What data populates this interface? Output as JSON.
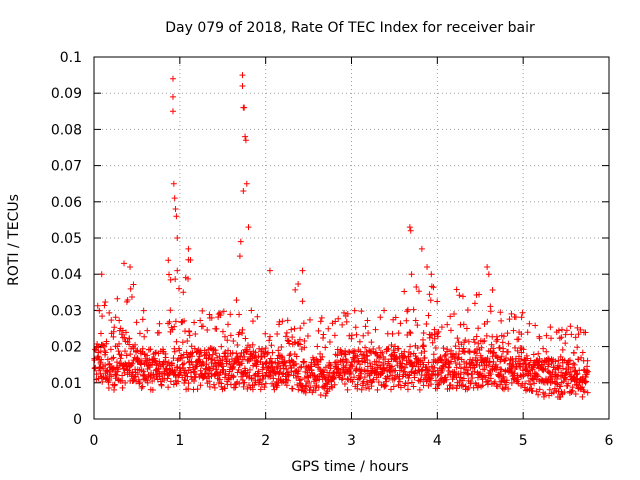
{
  "chart_data": {
    "type": "scatter",
    "title": "Day 079 of 2018, Rate Of TEC Index for receiver bair",
    "xlabel": "GPS time / hours",
    "ylabel": "ROTI / TECUs",
    "xlim": [
      0,
      6
    ],
    "ylim": [
      0,
      0.1
    ],
    "xticks": [
      0,
      1,
      2,
      3,
      4,
      5,
      6
    ],
    "xtick_labels": [
      "0",
      "1",
      "2",
      "3",
      "4",
      "5",
      "6"
    ],
    "yticks": [
      0,
      0.01,
      0.02,
      0.03,
      0.04,
      0.05,
      0.06,
      0.07,
      0.08,
      0.09,
      0.1
    ],
    "ytick_labels": [
      "0",
      "0.01",
      "0.02",
      "0.03",
      "0.04",
      "0.05",
      "0.06",
      "0.07",
      "0.08",
      "0.09",
      "0.1"
    ],
    "grid": true,
    "marker": "+",
    "color": "#ff0000",
    "series": [
      {
        "name": "ROTI",
        "x_range": [
          0,
          5.75
        ],
        "x_step": 0.01,
        "points": [
          [
            0.92,
            0.094
          ],
          [
            0.92,
            0.089
          ],
          [
            0.92,
            0.085
          ],
          [
            0.93,
            0.065
          ],
          [
            0.94,
            0.061
          ],
          [
            0.95,
            0.058
          ],
          [
            0.96,
            0.056
          ],
          [
            0.97,
            0.05
          ],
          [
            0.97,
            0.041
          ],
          [
            0.99,
            0.036
          ],
          [
            1.04,
            0.035
          ],
          [
            1.1,
            0.047
          ],
          [
            1.1,
            0.044
          ],
          [
            1.73,
            0.095
          ],
          [
            1.73,
            0.092
          ],
          [
            1.74,
            0.086
          ],
          [
            1.75,
            0.086
          ],
          [
            1.76,
            0.078
          ],
          [
            1.77,
            0.077
          ],
          [
            1.78,
            0.065
          ],
          [
            1.74,
            0.063
          ],
          [
            1.8,
            0.053
          ],
          [
            1.71,
            0.049
          ],
          [
            1.7,
            0.045
          ],
          [
            3.68,
            0.053
          ],
          [
            3.69,
            0.052
          ],
          [
            3.82,
            0.047
          ],
          [
            3.88,
            0.042
          ],
          [
            3.7,
            0.04
          ],
          [
            4.58,
            0.042
          ],
          [
            4.6,
            0.04
          ],
          [
            2.43,
            0.041
          ],
          [
            2.05,
            0.041
          ],
          [
            0.35,
            0.043
          ],
          [
            0.42,
            0.042
          ],
          [
            0.09,
            0.04
          ],
          [
            3.93,
            0.04
          ]
        ]
      }
    ]
  }
}
